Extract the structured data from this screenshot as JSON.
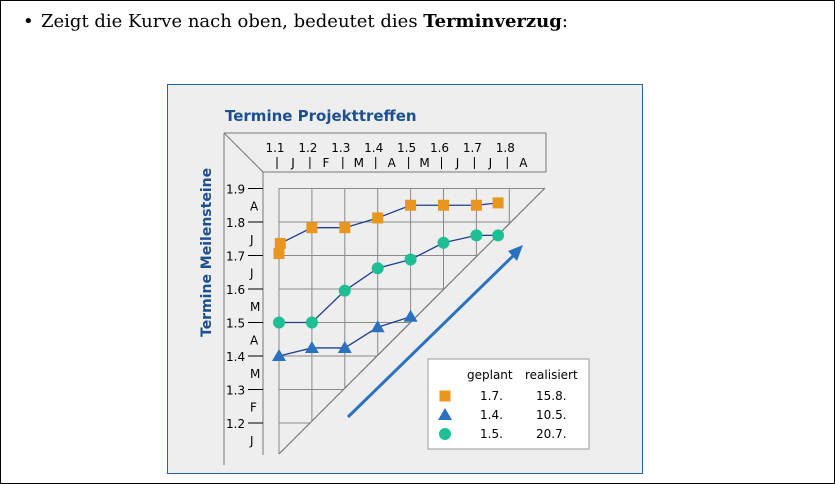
{
  "text": {
    "bullet": "•",
    "intro": "Zeigt die Kurve nach oben, bedeutet dies ",
    "emphasis": "Terminverzug",
    "tail": ":"
  },
  "chart_data": {
    "type": "line",
    "title": "Termine Projekttreffen",
    "ylabel": "Termine Meilensteine",
    "x_ticks": [
      "1.1",
      "1.2",
      "1.3",
      "1.4",
      "1.5",
      "1.6",
      "1.7",
      "1.8"
    ],
    "x_months": [
      "J",
      "F",
      "M",
      "A",
      "M",
      "J",
      "J",
      "A"
    ],
    "y_ticks": [
      "1.9",
      "1.8",
      "1.7",
      "1.6",
      "1.5",
      "1.4",
      "1.3",
      "1.2"
    ],
    "y_months": [
      "A",
      "J",
      "J",
      "M",
      "A",
      "M",
      "F",
      "J"
    ],
    "x_range": [
      1.0,
      8.0
    ],
    "y_range": [
      1.0,
      9.0
    ],
    "grid": true,
    "series": [
      {
        "marker": "square",
        "color": "#e8961e",
        "x": [
          1.0,
          1.04,
          2.0,
          3.0,
          4.0,
          5.0,
          6.0,
          7.0
        ],
        "y": [
          7.06,
          7.36,
          7.83,
          7.83,
          8.12,
          8.5,
          8.5,
          8.5
        ],
        "end_point": {
          "x": 7.66,
          "y": 8.57
        }
      },
      {
        "marker": "triangle",
        "color": "#2a72c0",
        "x": [
          1.0,
          2.0,
          3.0,
          4.0,
          5.0
        ],
        "y": [
          4.0,
          4.24,
          4.24,
          4.86,
          5.17
        ],
        "end_point": null
      },
      {
        "marker": "circle",
        "color": "#1fbf95",
        "x": [
          1.0,
          2.0,
          3.0,
          4.0,
          5.0,
          6.0,
          7.0
        ],
        "y": [
          5.0,
          5.0,
          5.95,
          6.62,
          6.88,
          7.38,
          7.6
        ],
        "end_point": {
          "x": 7.66,
          "y": 7.6
        }
      }
    ],
    "legend": {
      "position": "bottom-right",
      "headers": [
        "geplant",
        "realisiert"
      ],
      "rows": [
        {
          "marker": "square",
          "color": "#e8961e",
          "geplant": "1.7.",
          "realisiert": "15.8."
        },
        {
          "marker": "triangle",
          "color": "#2a72c0",
          "geplant": "1.4.",
          "realisiert": "10.5."
        },
        {
          "marker": "circle",
          "color": "#1fbf95",
          "geplant": "1.5.",
          "realisiert": "20.7."
        }
      ]
    },
    "colors": {
      "title": "#1d4f8f",
      "line": "#1f3f8f",
      "grid": "#8a8a8a",
      "arrow": "#2a72c0"
    }
  }
}
